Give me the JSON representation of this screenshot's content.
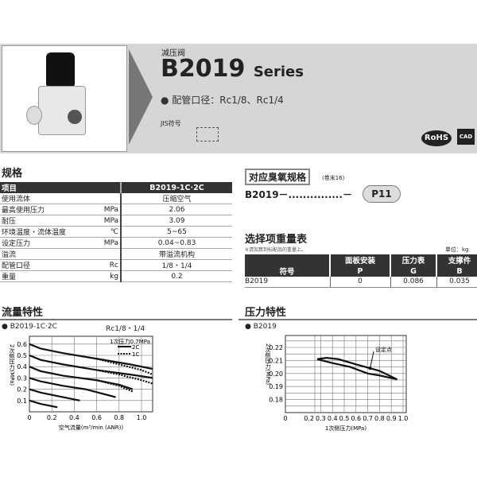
{
  "header": {
    "category": "减压阀",
    "model": "B2019",
    "series": "Series",
    "port_label": "● 配管口径：Rc1/8、Rc1/4",
    "jis_label": "JIS符号",
    "badges": [
      "RoHS",
      "CAD"
    ]
  },
  "spec": {
    "title": "规格",
    "head": [
      "项目",
      "B2019-1C·2C"
    ],
    "rows": [
      [
        "使用流体",
        "",
        "压缩空气"
      ],
      [
        "最高使用压力",
        "MPa",
        "2.06"
      ],
      [
        "耐压",
        "MPa",
        "3.09"
      ],
      [
        "环境温度・流体温度",
        "℃",
        "5~65"
      ],
      [
        "设定压力",
        "MPa",
        "0.04~0.83"
      ],
      [
        "溢流",
        "",
        "带溢流机构"
      ],
      [
        "配管口径",
        "Rc",
        "1/8・1/4"
      ],
      [
        "重量",
        "kg",
        "0.2"
      ]
    ]
  },
  "ozone": {
    "title": "对应臭氧规格",
    "ref": "(卷末16)",
    "code_prefix": "B2019－",
    "dots": "...............",
    "dash": "－",
    "suffix": "P11"
  },
  "options": {
    "title": "选择项重量表",
    "note": "※请加算到标配品的重量上。",
    "unit": "单位：kg",
    "head1": [
      "",
      "面板安装",
      "压力表",
      "支撑件"
    ],
    "head2": [
      "符号",
      "P",
      "G",
      "B"
    ],
    "rows": [
      [
        "B2019",
        "0",
        "0.086",
        "0.035"
      ]
    ]
  },
  "chart_data": [
    {
      "type": "line",
      "title": "流量特性",
      "subtitle": "B2019-1C·2C",
      "port": "Rc1/8・1/4",
      "annotation": "1次压力0.7MPa",
      "xlabel": "空气流量(m³/min (ANR))",
      "ylabel": "2次侧压力(MPa)",
      "xlim": [
        0,
        1.1
      ],
      "ylim": [
        0,
        0.67
      ],
      "grid": true,
      "legend": "top-right",
      "xticks": [
        "0",
        "0.2",
        "0.4",
        "0.6",
        "0.8",
        "1.0"
      ],
      "yticks": [
        "0.1",
        "0.2",
        "0.3",
        "0.4",
        "0.5",
        "0.6"
      ],
      "series": [
        {
          "name": "2C",
          "style": "solid",
          "lines": [
            [
              [
                0,
                0.6
              ],
              [
                0.1,
                0.56
              ],
              [
                0.3,
                0.52
              ],
              [
                0.6,
                0.47
              ],
              [
                0.9,
                0.42
              ],
              [
                1.1,
                0.38
              ]
            ],
            [
              [
                0,
                0.5
              ],
              [
                0.1,
                0.46
              ],
              [
                0.3,
                0.42
              ],
              [
                0.6,
                0.37
              ],
              [
                0.9,
                0.33
              ],
              [
                1.1,
                0.3
              ]
            ],
            [
              [
                0,
                0.4
              ],
              [
                0.1,
                0.36
              ],
              [
                0.3,
                0.32
              ],
              [
                0.6,
                0.28
              ],
              [
                0.8,
                0.24
              ],
              [
                0.92,
                0.2
              ]
            ],
            [
              [
                0,
                0.3
              ],
              [
                0.1,
                0.27
              ],
              [
                0.3,
                0.23
              ],
              [
                0.5,
                0.2
              ],
              [
                0.77,
                0.13
              ]
            ],
            [
              [
                0,
                0.2
              ],
              [
                0.1,
                0.17
              ],
              [
                0.3,
                0.13
              ],
              [
                0.45,
                0.1
              ]
            ],
            [
              [
                0,
                0.1
              ],
              [
                0.1,
                0.07
              ],
              [
                0.25,
                0.04
              ]
            ]
          ]
        },
        {
          "name": "1C",
          "style": "dotted",
          "lines": [
            [
              [
                0.6,
                0.47
              ],
              [
                0.8,
                0.42
              ],
              [
                1.0,
                0.37
              ],
              [
                1.1,
                0.33
              ]
            ],
            [
              [
                0.6,
                0.37
              ],
              [
                0.8,
                0.33
              ],
              [
                1.0,
                0.28
              ],
              [
                1.1,
                0.25
              ]
            ],
            [
              [
                0.6,
                0.28
              ],
              [
                0.8,
                0.23
              ],
              [
                0.92,
                0.18
              ]
            ]
          ]
        }
      ]
    },
    {
      "type": "line",
      "title": "压力特性",
      "subtitle": "B2019",
      "annotation": "设定点",
      "xlabel": "1次侧压力(MPa)",
      "ylabel": "2次侧压力(MPa)",
      "xlim": [
        0,
        1.0
      ],
      "ylim": [
        0.171,
        0.229
      ],
      "grid": true,
      "xticks": [
        "0",
        "0.2",
        "0.3",
        "0.4",
        "0.5",
        "0.6",
        "0.7",
        "0.8",
        "0.9",
        "1.0"
      ],
      "yticks": [
        "0.18",
        "0.19",
        "0.20",
        "0.21",
        "0.22"
      ],
      "series": [
        {
          "lines": [
            [
              [
                0.27,
                0.211
              ],
              [
                0.35,
                0.212
              ],
              [
                0.45,
                0.211
              ],
              [
                0.6,
                0.207
              ],
              [
                0.72,
                0.204
              ],
              [
                0.8,
                0.202
              ],
              [
                0.95,
                0.1955
              ]
            ],
            [
              [
                0.27,
                0.211
              ],
              [
                0.4,
                0.208
              ],
              [
                0.55,
                0.205
              ],
              [
                0.7,
                0.2
              ],
              [
                0.8,
                0.1985
              ],
              [
                0.95,
                0.1955
              ]
            ]
          ]
        }
      ],
      "set_point": [
        0.72,
        0.204
      ]
    }
  ]
}
